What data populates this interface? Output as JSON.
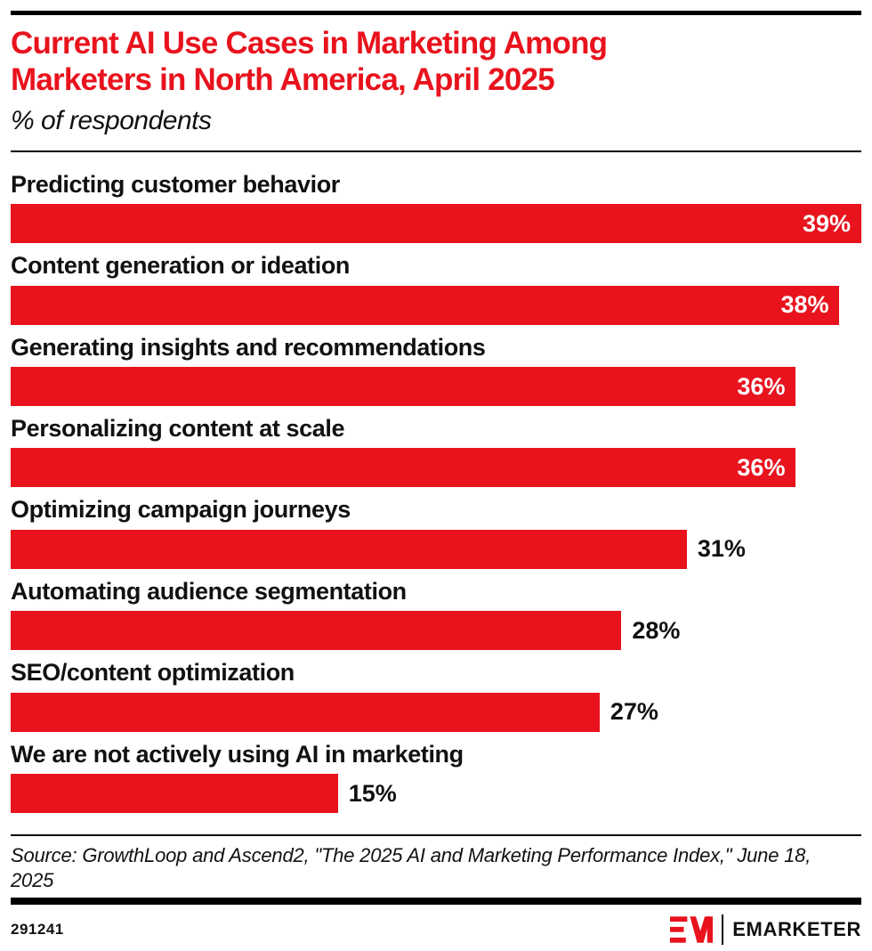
{
  "header": {
    "title": "Current AI Use Cases in Marketing Among Marketers in North America, April 2025",
    "subtitle": "% of respondents"
  },
  "chart_data": {
    "type": "bar",
    "orientation": "horizontal",
    "title": "Current AI Use Cases in Marketing Among Marketers in North America, April 2025",
    "subtitle": "% of respondents",
    "xlabel": "",
    "ylabel": "",
    "unit": "%",
    "xlim": [
      0,
      39
    ],
    "grid": false,
    "legend": false,
    "categories": [
      "Predicting customer behavior",
      "Content generation or ideation",
      "Generating insights and recommendations",
      "Personalizing content at scale",
      "Optimizing campaign journeys",
      "Automating audience segmentation",
      "SEO/content optimization",
      "We are not actively using AI in marketing"
    ],
    "values": [
      39,
      38,
      36,
      36,
      31,
      28,
      27,
      15
    ],
    "value_labels": [
      "39%",
      "38%",
      "36%",
      "36%",
      "31%",
      "28%",
      "27%",
      "15%"
    ],
    "bar_color": "#E8131D",
    "inside_label_color": "#FFFFFF",
    "outside_label_color": "#111111"
  },
  "footer": {
    "source": "Source: GrowthLoop and Ascend2, \"The 2025 AI and Marketing Performance Index,\" June 18, 2025",
    "chart_id": "291241",
    "logo_monogram": "EM",
    "logo_text": "EMARKETER"
  },
  "colors": {
    "brand_red": "#E8131D",
    "text": "#111111",
    "background": "#FFFFFF"
  }
}
